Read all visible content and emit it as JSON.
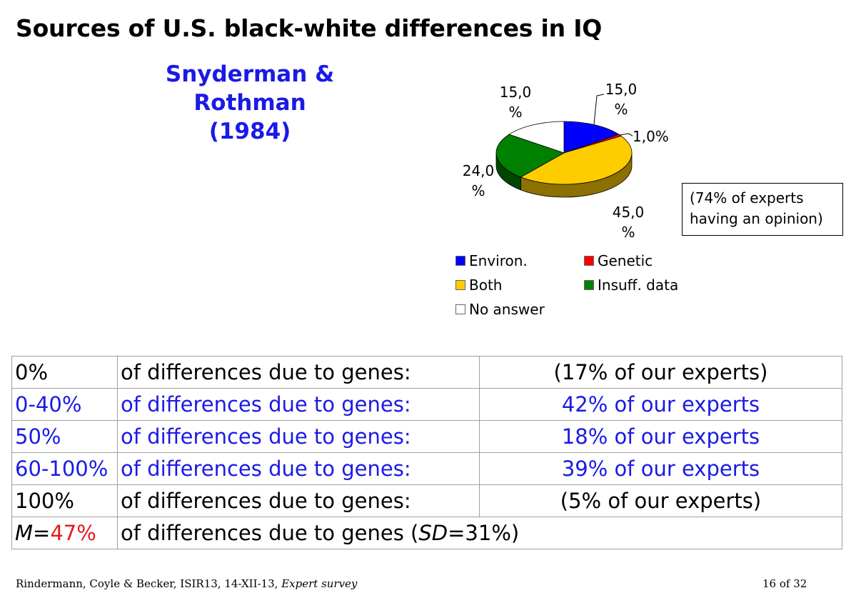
{
  "title": "Sources of U.S. black-white differences in IQ",
  "subtitle": {
    "line1": "Snyderman & Rothman",
    "line2": "(1984)"
  },
  "chart_data": {
    "type": "pie",
    "slices": [
      {
        "name": "Environ.",
        "value": 15.0,
        "label": "15,0 %",
        "color": "#0000ff"
      },
      {
        "name": "Genetic",
        "value": 1.0,
        "label": "1,0%",
        "color": "#ff0000"
      },
      {
        "name": "Both",
        "value": 45.0,
        "label": "45,0 %",
        "color": "#ffcc00"
      },
      {
        "name": "Insuff. data",
        "value": 24.0,
        "label": "24,0 %",
        "color": "#008000"
      },
      {
        "name": "No answer",
        "value": 15.0,
        "label": "15,0 %",
        "color": "#ffffff"
      }
    ],
    "legend": [
      "Environ.",
      "Genetic",
      "Both",
      "Insuff. data",
      "No answer"
    ]
  },
  "note": {
    "line1": "(74% of experts",
    "line2": "having an opinion)"
  },
  "table": {
    "rows": [
      {
        "range": "0%",
        "text": "of differences due to genes:",
        "share": "(17% of our experts)",
        "highlight": false
      },
      {
        "range": "0-40%",
        "text": "of differences due to genes:",
        "share": "42% of our experts",
        "highlight": true
      },
      {
        "range": "50%",
        "text": "of differences due to genes:",
        "share": "18% of our experts",
        "highlight": true
      },
      {
        "range": "60-100%",
        "text": "of differences due to genes:",
        "share": "39% of our experts",
        "highlight": true
      },
      {
        "range": "100%",
        "text": "of differences due to genes:",
        "share": "(5% of our experts)",
        "highlight": false
      }
    ],
    "mean_row": {
      "m_label": "M",
      "equals": "=",
      "m_value": "47%",
      "text_prefix": "of differences due to genes (",
      "sd_label": "SD",
      "sd_value": "=31%)"
    }
  },
  "footer": {
    "left_text": "Rindermann, Coyle & Becker, ISIR13, 14-XII-13, ",
    "left_italic": "Expert survey",
    "page": "16 of 32"
  }
}
